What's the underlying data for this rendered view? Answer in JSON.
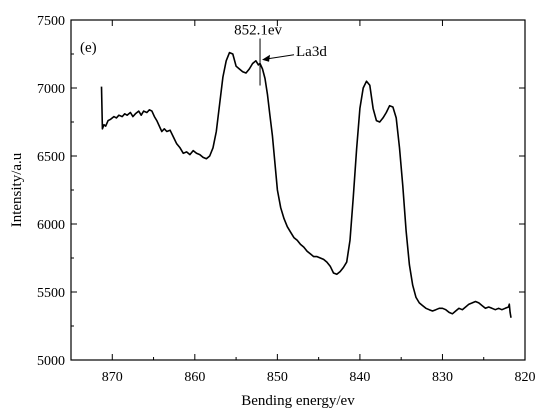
{
  "chart_data": {
    "type": "line",
    "panel_label": "(e)",
    "xlabel": "Bending energy/ev",
    "ylabel": "Intensity/a.u",
    "xlim": [
      875,
      820
    ],
    "ylim": [
      5000,
      7500
    ],
    "x_reversed": true,
    "x_ticks": [
      870,
      860,
      850,
      840,
      830,
      820
    ],
    "y_ticks": [
      5000,
      5500,
      6000,
      6500,
      7000,
      7500
    ],
    "grid": false,
    "legend": "none",
    "line_color": "#000000",
    "annotations": [
      {
        "text": "852.1ev",
        "x": 852.1,
        "y": 7180,
        "style": "vertical-marker"
      },
      {
        "text": "La3d",
        "x": 852.1,
        "y": 7200,
        "style": "arrow"
      }
    ],
    "series": [
      {
        "x": [
          871.3,
          871.2,
          871.0,
          870.8,
          870.5,
          870.2,
          869.8,
          869.5,
          869.2,
          868.8,
          868.5,
          868.2,
          867.8,
          867.5,
          867.2,
          866.8,
          866.5,
          866.2,
          865.8,
          865.5,
          865.2,
          864.9,
          864.6,
          864.3,
          864.0,
          863.7,
          863.4,
          863.0,
          862.6,
          862.2,
          861.8,
          861.4,
          861.0,
          860.6,
          860.2,
          859.8,
          859.4,
          859.0,
          858.6,
          858.2,
          857.8,
          857.4,
          857.0,
          856.6,
          856.2,
          855.8,
          855.4,
          855.0,
          854.6,
          854.2,
          853.8,
          853.4,
          853.0,
          852.6,
          852.3,
          852.1,
          851.8,
          851.5,
          851.2,
          850.9,
          850.6,
          850.3,
          850.0,
          849.6,
          849.2,
          848.8,
          848.4,
          848.0,
          847.6,
          847.2,
          846.8,
          846.4,
          846.0,
          845.6,
          845.2,
          844.8,
          844.4,
          844.0,
          843.6,
          843.2,
          842.8,
          842.4,
          842.0,
          841.6,
          841.2,
          840.8,
          840.4,
          840.0,
          839.6,
          839.2,
          838.8,
          838.4,
          838.0,
          837.6,
          837.2,
          836.8,
          836.4,
          836.0,
          835.6,
          835.2,
          834.8,
          834.4,
          834.0,
          833.6,
          833.2,
          832.8,
          832.4,
          832.0,
          831.6,
          831.2,
          830.8,
          830.4,
          830.0,
          829.6,
          829.2,
          828.8,
          828.4,
          828.0,
          827.6,
          827.2,
          826.8,
          826.4,
          826.0,
          825.6,
          825.2,
          824.8,
          824.4,
          824.0,
          823.6,
          823.2,
          822.8,
          822.4,
          822.0,
          821.9,
          821.8,
          821.7
        ],
        "y": [
          7010,
          6700,
          6730,
          6720,
          6760,
          6770,
          6790,
          6780,
          6800,
          6790,
          6810,
          6800,
          6820,
          6790,
          6810,
          6830,
          6800,
          6830,
          6820,
          6840,
          6830,
          6790,
          6760,
          6720,
          6680,
          6700,
          6680,
          6690,
          6640,
          6590,
          6560,
          6520,
          6530,
          6510,
          6540,
          6520,
          6510,
          6490,
          6480,
          6500,
          6560,
          6680,
          6880,
          7080,
          7200,
          7260,
          7250,
          7160,
          7140,
          7120,
          7110,
          7140,
          7180,
          7200,
          7170,
          7180,
          7140,
          7070,
          6950,
          6800,
          6650,
          6450,
          6250,
          6120,
          6040,
          5980,
          5940,
          5900,
          5880,
          5850,
          5830,
          5800,
          5780,
          5760,
          5760,
          5750,
          5740,
          5720,
          5690,
          5640,
          5630,
          5650,
          5680,
          5720,
          5880,
          6200,
          6550,
          6850,
          7000,
          7050,
          7020,
          6850,
          6760,
          6750,
          6780,
          6820,
          6870,
          6860,
          6780,
          6560,
          6280,
          5950,
          5700,
          5550,
          5460,
          5420,
          5400,
          5380,
          5370,
          5360,
          5370,
          5380,
          5380,
          5370,
          5350,
          5340,
          5360,
          5380,
          5370,
          5390,
          5410,
          5420,
          5430,
          5420,
          5400,
          5380,
          5390,
          5380,
          5370,
          5380,
          5370,
          5380,
          5390,
          5410,
          5350,
          5310
        ]
      }
    ]
  }
}
